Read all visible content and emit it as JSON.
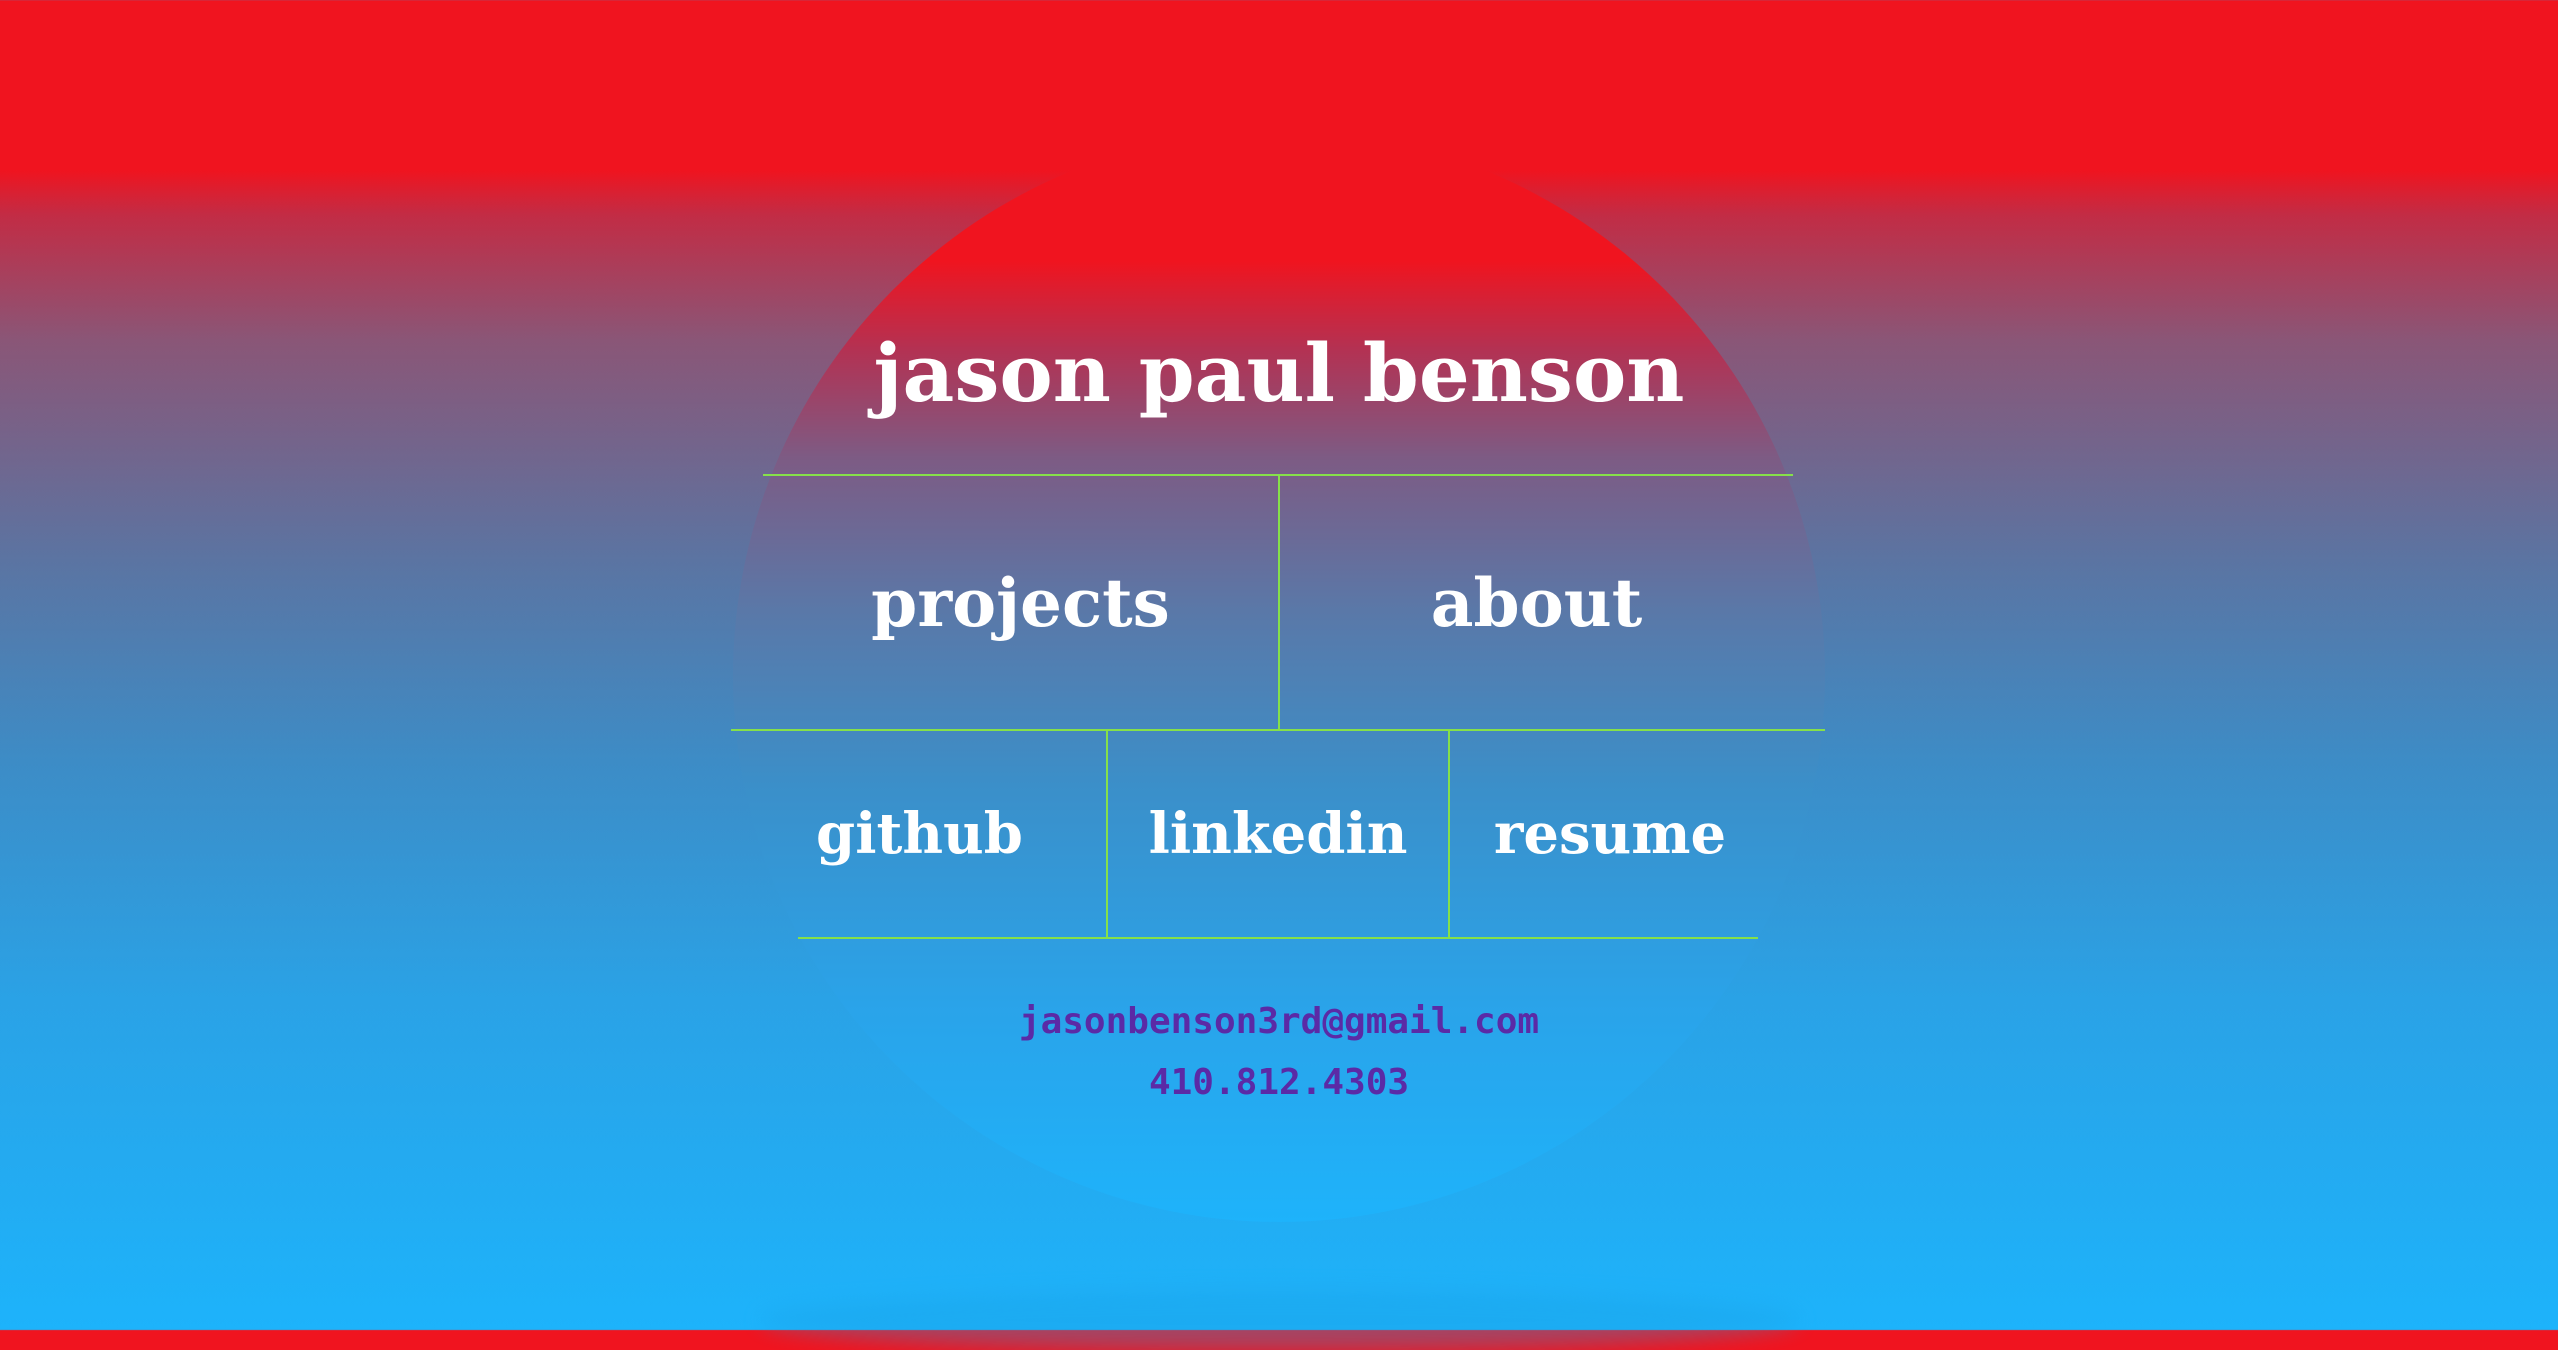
{
  "header": {
    "name": "jason paul benson"
  },
  "nav": {
    "projects": "projects",
    "about": "about",
    "github": "github",
    "linkedin": "linkedin",
    "resume": "resume"
  },
  "contact": {
    "email": "jasonbenson3rd@gmail.com",
    "phone": "410.812.4303"
  },
  "colors": {
    "top_red": "#f0141f",
    "bottom_blue": "#1db3fb",
    "divider_green": "#86e04a",
    "contact_purple": "#5b2aa6",
    "text_white": "#ffffff"
  }
}
